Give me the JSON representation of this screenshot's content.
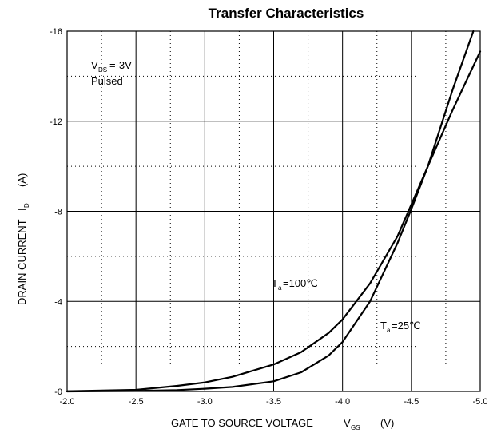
{
  "chart_data": {
    "type": "line",
    "title": "Transfer Characteristics",
    "xlabel": "GATE TO SOURCE VOLTAGE",
    "xlabel_symbol": "V",
    "xlabel_subscript": "GS",
    "xlabel_unit": "(V)",
    "ylabel": "DRAIN CURRENT",
    "ylabel_symbol": "I",
    "ylabel_subscript": "D",
    "ylabel_unit": "(A)",
    "xlim": [
      -2.0,
      -5.0
    ],
    "ylim": [
      0,
      -16
    ],
    "x_ticks": [
      -2.0,
      -2.5,
      -3.0,
      -3.5,
      -4.0,
      -4.5,
      -5.0
    ],
    "x_tick_labels": [
      "-2.0",
      "-2.5",
      "-3.0",
      "-3.5",
      "-4.0",
      "-4.5",
      "-5.0"
    ],
    "y_ticks": [
      0,
      -4,
      -8,
      -12,
      -16
    ],
    "y_tick_labels": [
      "-0",
      "-4",
      "-8",
      "-12",
      "-16"
    ],
    "grid": {
      "major": true,
      "minor_dotted": true,
      "x_minor_step": 0.25,
      "y_minor_step": 2
    },
    "condition": {
      "line1_symbol": "V",
      "line1_subscript": "DS",
      "line1_value": "=-3V",
      "line2": "Pulsed"
    },
    "series": [
      {
        "name": "Ta=100℃",
        "label_symbol": "T",
        "label_subscript": "a",
        "label_value": "=100℃",
        "x": [
          -2.0,
          -2.5,
          -2.8,
          -3.0,
          -3.2,
          -3.5,
          -3.7,
          -3.9,
          -4.0,
          -4.2,
          -4.4,
          -4.5,
          -4.62,
          -4.8,
          -5.0
        ],
        "y": [
          -0.01,
          -0.07,
          -0.25,
          -0.4,
          -0.65,
          -1.2,
          -1.75,
          -2.6,
          -3.2,
          -4.8,
          -6.9,
          -8.3,
          -10.0,
          -12.5,
          -15.1
        ]
      },
      {
        "name": "Ta=25℃",
        "label_symbol": "T",
        "label_subscript": "a",
        "label_value": "=25℃",
        "x": [
          -2.0,
          -2.5,
          -2.8,
          -3.0,
          -3.2,
          -3.5,
          -3.7,
          -3.9,
          -4.0,
          -4.2,
          -4.4,
          -4.5,
          -4.62,
          -4.8,
          -4.95
        ],
        "y": [
          0,
          -0.02,
          -0.06,
          -0.12,
          -0.2,
          -0.45,
          -0.85,
          -1.6,
          -2.2,
          -4.0,
          -6.6,
          -8.1,
          -10.0,
          -13.4,
          -16.0
        ]
      }
    ]
  }
}
